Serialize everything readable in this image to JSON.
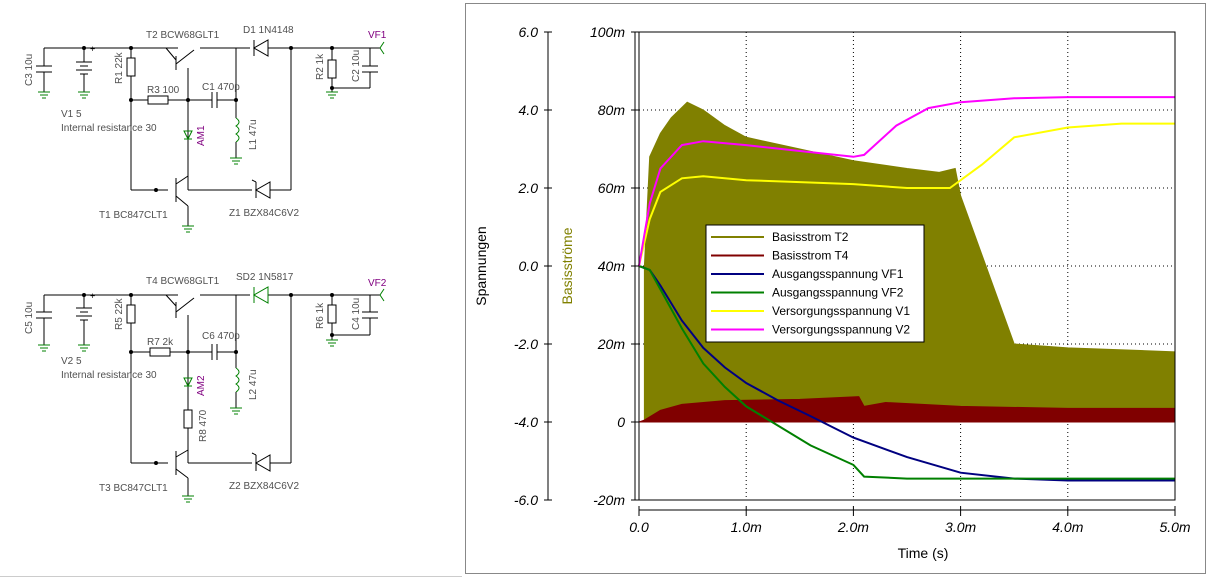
{
  "schematic": {
    "upper": {
      "c_in": "C3 10u",
      "source": "V1 5",
      "source_note": "Internal resistance 30",
      "r_bias": "R1 22k",
      "transistor_top": "T2 BCW68GLT1",
      "diode": "D1 1N4148",
      "r_base": "R3 100",
      "cap": "C1 470p",
      "ammeter": "AM1",
      "inductor": "L1 47u",
      "transistor_bottom": "T1 BC847CLT1",
      "zener": "Z1 BZX84C6V2",
      "r_load": "R2 1k",
      "c_out": "C2 10u",
      "out_node": "VF1"
    },
    "lower": {
      "c_in": "C5 10u",
      "source": "V2 5",
      "source_note": "Internal resistance 30",
      "r_bias": "R5 22k",
      "transistor_top": "T4 BCW68GLT1",
      "diode": "SD2 1N5817",
      "r_base": "R7 2k",
      "cap": "C6 470p",
      "ammeter": "AM2",
      "inductor": "L2 47u",
      "r_extra": "R8 470",
      "transistor_bottom": "T3 BC847CLT1",
      "zener": "Z2 BZX84C6V2",
      "r_load": "R6 1k",
      "c_out": "C4 10u",
      "out_node": "VF2"
    }
  },
  "chart_data": {
    "type": "line",
    "xlabel": "Time (s)",
    "ylabel_left": "Spannungen",
    "ylabel_right": "Basisströme",
    "left_ticks": [
      "6.0",
      "4.0",
      "2.0",
      "0.0",
      "-2.0",
      "-4.0",
      "-6.0"
    ],
    "right_ticks": [
      "100m",
      "80m",
      "60m",
      "40m",
      "20m",
      "0",
      "-20m"
    ],
    "x_ticks": [
      "0.0",
      "1.0m",
      "2.0m",
      "3.0m",
      "4.0m",
      "5.0m"
    ],
    "xlim_ms": [
      0,
      5
    ],
    "ylim_left_V": [
      -6,
      6
    ],
    "ylim_right_mA": [
      -20,
      100
    ],
    "grid": true,
    "legend_position": "center-left",
    "series": [
      {
        "name": "Basisstrom T2",
        "axis": "right",
        "color": "#808000",
        "style": "oscillating band",
        "x_ms": [
          0.05,
          0.1,
          0.2,
          0.3,
          0.45,
          0.6,
          0.8,
          1.0,
          1.5,
          2.0,
          2.5,
          2.8,
          2.95,
          3.0,
          3.5,
          4.0,
          5.0
        ],
        "upper_mA": [
          40,
          68,
          74,
          78,
          82,
          80,
          76,
          73,
          70,
          67,
          65,
          64,
          65,
          58,
          20,
          19,
          18
        ],
        "lower_mA": [
          0,
          0,
          0,
          0,
          0,
          0,
          0,
          0,
          0,
          0,
          0,
          0,
          0,
          0,
          0,
          0,
          0
        ]
      },
      {
        "name": "Basisstrom T4",
        "axis": "right",
        "color": "#800000",
        "style": "oscillating band",
        "x_ms": [
          0.0,
          0.05,
          0.2,
          0.4,
          0.8,
          1.5,
          2.05,
          2.1,
          2.3,
          3.0,
          4.0,
          5.0
        ],
        "upper_mA": [
          0,
          0.5,
          3,
          4.5,
          5.5,
          5.8,
          6.5,
          4,
          5,
          4,
          3.5,
          3.5
        ],
        "lower_mA": [
          0,
          0,
          0,
          0,
          0,
          0,
          0,
          0,
          0,
          0,
          0,
          0
        ]
      },
      {
        "name": "Ausgangsspannung VF1",
        "axis": "left",
        "color": "#000080",
        "x_ms": [
          0,
          0.1,
          0.2,
          0.4,
          0.6,
          0.8,
          1.0,
          1.3,
          1.6,
          2.0,
          2.5,
          3.0,
          3.5,
          4.0,
          5.0
        ],
        "y_V": [
          0.0,
          -0.1,
          -0.5,
          -1.4,
          -2.1,
          -2.6,
          -3.0,
          -3.45,
          -3.85,
          -4.4,
          -4.9,
          -5.3,
          -5.45,
          -5.5,
          -5.5
        ]
      },
      {
        "name": "Ausgangsspannung VF2",
        "axis": "left",
        "color": "#008000",
        "x_ms": [
          0,
          0.1,
          0.2,
          0.4,
          0.6,
          0.8,
          1.0,
          1.3,
          1.6,
          2.0,
          2.1,
          2.5,
          3.0,
          4.0,
          5.0
        ],
        "y_V": [
          0.0,
          -0.1,
          -0.6,
          -1.6,
          -2.5,
          -3.1,
          -3.6,
          -4.1,
          -4.6,
          -5.1,
          -5.4,
          -5.45,
          -5.45,
          -5.45,
          -5.45
        ]
      },
      {
        "name": "Versorgungsspannung V1",
        "axis": "left",
        "color": "#ffff00",
        "x_ms": [
          0,
          0.1,
          0.2,
          0.4,
          0.6,
          1.0,
          1.5,
          2.0,
          2.5,
          2.9,
          3.2,
          3.5,
          4.0,
          4.5,
          5.0
        ],
        "y_V": [
          0.0,
          1.2,
          1.9,
          2.25,
          2.3,
          2.2,
          2.15,
          2.1,
          2.0,
          2.0,
          2.6,
          3.3,
          3.55,
          3.65,
          3.65
        ]
      },
      {
        "name": "Versorgungsspannung V2",
        "axis": "left",
        "color": "#ff00ff",
        "x_ms": [
          0,
          0.1,
          0.2,
          0.4,
          0.6,
          1.0,
          1.5,
          2.0,
          2.1,
          2.4,
          2.7,
          3.0,
          3.5,
          4.0,
          5.0
        ],
        "y_V": [
          0.0,
          1.6,
          2.5,
          3.1,
          3.2,
          3.1,
          2.95,
          2.8,
          2.85,
          3.6,
          4.05,
          4.2,
          4.3,
          4.33,
          4.33
        ]
      }
    ]
  }
}
